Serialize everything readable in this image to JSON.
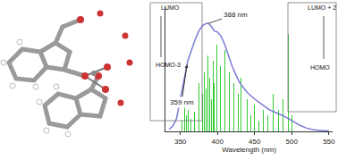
{
  "chart_data": {
    "type": "line",
    "xlabel": "Wavelength (nm)",
    "xlim": [
      330,
      555
    ],
    "xticks": [
      350,
      400,
      450,
      500,
      550
    ],
    "ylim": [
      0,
      1.15
    ],
    "yticks": [],
    "tick_labels": "x",
    "grid": false,
    "series": [
      {
        "type": "line",
        "color": "#7b7bd6",
        "x": [
          335,
          340,
          345,
          350,
          355,
          360,
          365,
          370,
          375,
          380,
          385,
          388,
          392,
          396,
          400,
          405,
          410,
          415,
          420,
          425,
          430,
          440,
          450,
          460,
          470,
          480,
          490,
          500,
          510,
          520,
          530,
          540,
          550
        ],
        "values": [
          0.02,
          0.05,
          0.12,
          0.3,
          0.5,
          0.65,
          0.75,
          0.85,
          0.93,
          0.98,
          1.0,
          1.0,
          0.97,
          0.93,
          0.92,
          0.88,
          0.8,
          0.7,
          0.6,
          0.52,
          0.45,
          0.36,
          0.3,
          0.25,
          0.2,
          0.17,
          0.14,
          0.1,
          0.06,
          0.03,
          0.015,
          0.008,
          0.004
        ]
      },
      {
        "type": "bar",
        "color": "#33cc33",
        "x": [
          352,
          356,
          358,
          361,
          364,
          366,
          369,
          372,
          375,
          377,
          380,
          382,
          385,
          387,
          390,
          392,
          394,
          396,
          399,
          401,
          404,
          407,
          410,
          413,
          416,
          419,
          422,
          425,
          428,
          432,
          436,
          440,
          445,
          450,
          456,
          462,
          468,
          475,
          482,
          488,
          495,
          500
        ],
        "values": [
          0.1,
          0.3,
          0.15,
          0.2,
          0.12,
          0.25,
          0.18,
          0.3,
          0.45,
          0.2,
          0.35,
          0.55,
          0.4,
          0.7,
          0.5,
          0.3,
          0.65,
          0.45,
          0.8,
          0.35,
          0.6,
          0.5,
          0.75,
          0.4,
          0.55,
          0.3,
          0.45,
          0.25,
          0.35,
          0.5,
          0.2,
          0.3,
          0.15,
          0.25,
          0.1,
          0.2,
          0.15,
          0.35,
          0.2,
          0.3,
          0.9,
          0.15
        ]
      }
    ],
    "annotations": [
      {
        "text": "388 nm",
        "x": 388,
        "y": 1.0
      },
      {
        "text": "359 nm",
        "x": 359,
        "y": 0.62
      }
    ],
    "orbital_labels": {
      "left": [
        "LUMO",
        "HOMO-3"
      ],
      "right": [
        "LUMO + 2",
        "HOMO"
      ]
    }
  }
}
